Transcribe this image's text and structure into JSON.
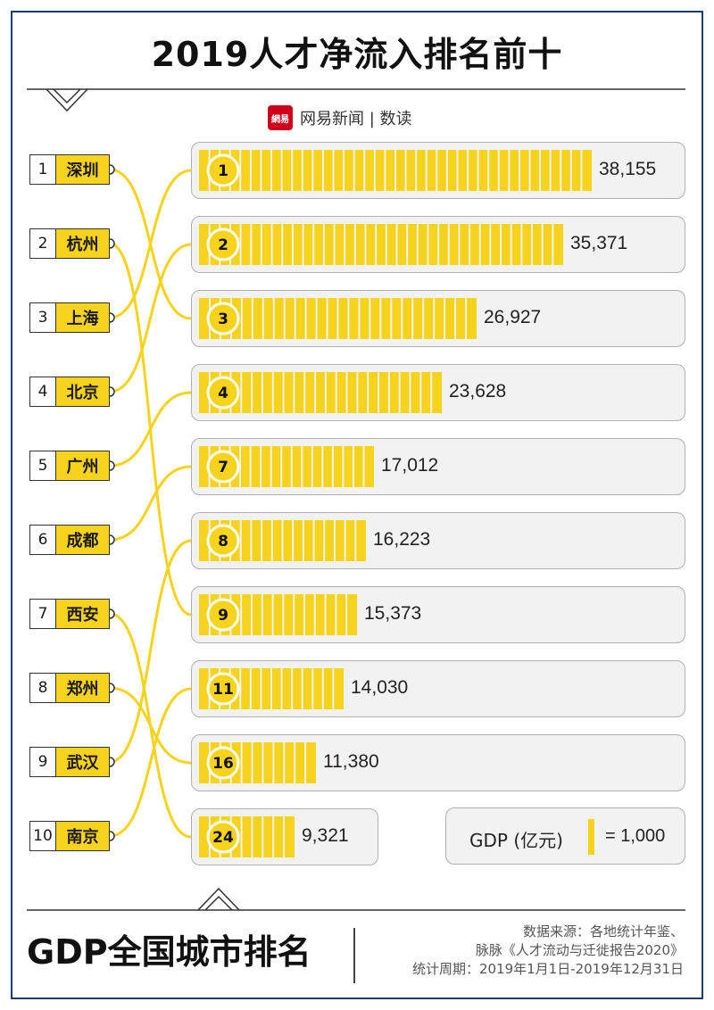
{
  "title": "2019人才净流入排名前十",
  "source": {
    "logo_text": "網易",
    "label": "网易新闻 | 数读"
  },
  "colors": {
    "accent": "#f8d31c",
    "line": "#f8d31c",
    "frame": "#1f3b73",
    "panel": "#f2f2f2"
  },
  "cities": [
    {
      "rank": "1",
      "name": "深圳"
    },
    {
      "rank": "2",
      "name": "杭州"
    },
    {
      "rank": "3",
      "name": "上海"
    },
    {
      "rank": "4",
      "name": "北京"
    },
    {
      "rank": "5",
      "name": "广州"
    },
    {
      "rank": "6",
      "name": "成都"
    },
    {
      "rank": "7",
      "name": "西安"
    },
    {
      "rank": "8",
      "name": "郑州"
    },
    {
      "rank": "9",
      "name": "武汉"
    },
    {
      "rank": "10",
      "name": "南京"
    }
  ],
  "chart_data": {
    "type": "bar",
    "title": "2019人才净流入排名前十",
    "xlabel": "",
    "ylabel": "",
    "unit_note": "GDP (亿元) = 1,000",
    "categories": [
      "1",
      "2",
      "3",
      "4",
      "7",
      "8",
      "9",
      "11",
      "16",
      "24"
    ],
    "values": [
      38155,
      35371,
      26927,
      23628,
      17012,
      16223,
      15373,
      14030,
      11380,
      9321
    ],
    "value_labels": [
      "38,155",
      "35,371",
      "26,927",
      "23,628",
      "17,012",
      "16,223",
      "15,373",
      "14,030",
      "11,380",
      "9,321"
    ],
    "connections": [
      {
        "talent_rank": "1",
        "city": "深圳",
        "gdp_rank": "3"
      },
      {
        "talent_rank": "2",
        "city": "杭州",
        "gdp_rank": "9"
      },
      {
        "talent_rank": "3",
        "city": "上海",
        "gdp_rank": "1"
      },
      {
        "talent_rank": "4",
        "city": "北京",
        "gdp_rank": "2"
      },
      {
        "talent_rank": "5",
        "city": "广州",
        "gdp_rank": "4"
      },
      {
        "talent_rank": "6",
        "city": "成都",
        "gdp_rank": "7"
      },
      {
        "talent_rank": "7",
        "city": "西安",
        "gdp_rank": "24"
      },
      {
        "talent_rank": "8",
        "city": "郑州",
        "gdp_rank": "16"
      },
      {
        "talent_rank": "9",
        "city": "武汉",
        "gdp_rank": "8"
      },
      {
        "talent_rank": "10",
        "city": "南京",
        "gdp_rank": "11"
      }
    ],
    "legend": {
      "label": "GDP (亿元)",
      "unit_value": "= 1,000"
    }
  },
  "footer": {
    "title": "GDP全国城市排名",
    "notes": [
      "数据来源：各地统计年鉴、",
      "脉脉《人才流动与迁徙报告2020》",
      "统计周期：2019年1月1日-2019年12月31日"
    ]
  }
}
